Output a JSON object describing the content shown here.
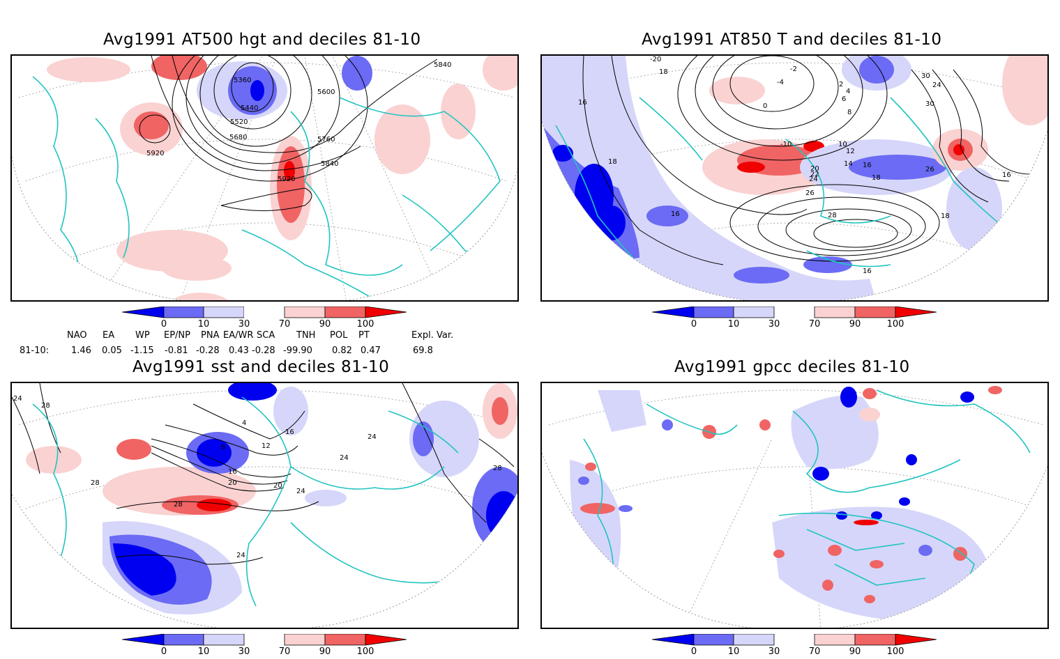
{
  "colors": {
    "deep_blue": "#0000f0",
    "mid_blue": "#6b6bf5",
    "light_blue": "#d6d6fa",
    "light_red": "#fad2d2",
    "mid_red": "#f06464",
    "deep_red": "#f00000",
    "coast": "#20c4c0",
    "contour": "#000000"
  },
  "panels": [
    {
      "title": "Avg1991 AT500 hgt and deciles 81-10",
      "contour_labels": [
        "5360",
        "5440",
        "5520",
        "5600",
        "5680",
        "5760",
        "5840",
        "5920",
        "5920",
        "5840"
      ]
    },
    {
      "title": "Avg1991 AT850 T and deciles 81-10",
      "contour_labels": [
        "-20",
        "18",
        "-4",
        "-2",
        "2",
        "4",
        "6",
        "8",
        "0",
        "16",
        "18",
        "-10",
        "10",
        "12",
        "14",
        "16",
        "18",
        "20",
        "22",
        "24",
        "26",
        "28",
        "30",
        "24",
        "30",
        "26",
        "16",
        "18",
        "16",
        "16"
      ]
    },
    {
      "title": "Avg1991 sst and deciles 81-10",
      "contour_labels": [
        "24",
        "28",
        "28",
        "28",
        "24",
        "4",
        "8",
        "12",
        "16",
        "20",
        "16",
        "20",
        "24",
        "24",
        "28",
        "24"
      ]
    },
    {
      "title": "Avg1991 gpcc deciles 81-10",
      "contour_labels": []
    }
  ],
  "colorbar": {
    "labels": [
      "0",
      "10",
      "30",
      "70",
      "90",
      "100"
    ]
  },
  "teleconnections": {
    "headers": [
      "NAO",
      "EA",
      "WP",
      "EP/NP",
      "PNA",
      "EA/WR",
      "SCA",
      "TNH",
      "POL",
      "PT",
      "Expl. Var."
    ],
    "row_label": "81-10:",
    "values": [
      "1.46",
      "0.05",
      "-1.15",
      "-0.81",
      "-0.28",
      "0.43",
      "-0.28",
      "-99.90",
      "0.82",
      "0.47",
      "69.8"
    ]
  }
}
